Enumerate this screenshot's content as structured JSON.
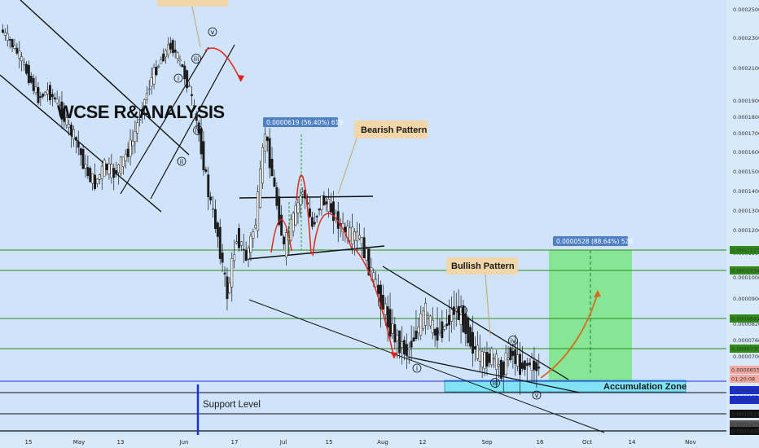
{
  "watermark": "WCSE R&ANALYSIS",
  "callouts": {
    "bearish": "Bearish Pattern",
    "bullish": "Bullish Pattern",
    "accumulation": "Accumulation Zone",
    "support": "Support Level"
  },
  "measures": {
    "top": "0.0000619 (56.40%) 619",
    "right": "0.0000528 (88.64%) 528"
  },
  "waves": {
    "i_up": "i",
    "ii_up": "ii",
    "iii_up": "iii",
    "iv_up": "iv",
    "v_up": "v",
    "i_low": "i",
    "ii_low": "ii",
    "iii_low": "iii",
    "iv_low": "iv",
    "v_low": "v"
  },
  "colors": {
    "background": "#cfe3fa",
    "candle": "#1b1b1b",
    "green_line": "#2e8b1a",
    "zone_fill": "#7fe3f5",
    "target_fill": "#7ee58a",
    "measure_box": "#4f7fc4",
    "callout_box": "#f0d6a8",
    "bearish_arc": "#e0241a",
    "support_bar": "#1a2fd8"
  },
  "chart_data": {
    "type": "candlestick",
    "x_ticks": [
      "15",
      "May",
      "13",
      "Jun",
      "17",
      "Jul",
      "15",
      "Aug",
      "12",
      "Sep",
      "16",
      "Oct",
      "14",
      "Nov"
    ],
    "y_ticks": [
      0.00025,
      0.00023,
      0.00021,
      0.00019,
      0.00018,
      0.00017,
      0.00016,
      0.00015,
      0.00014,
      0.00013,
      0.00012,
      0.00011,
      0.0001,
      9e-05,
      8.2e-05,
      7.6e-05,
      7e-05,
      6.5e-05,
      6e-05,
      5.5e-05,
      4.8e-05
    ],
    "y_tick_labels": [
      "0.0002500",
      "0.0002300",
      "0.0002100",
      "0.0001900",
      "0.0001800",
      "0.0001700",
      "0.0001600",
      "0.0001500",
      "0.0001400",
      "0.0001300",
      "0.0001200",
      "0.0001100",
      "0.0001000",
      "0.0000900",
      "0.0000820",
      "0.0000760",
      "0.0000700",
      "0.0000650",
      "0.0000600",
      "0.0000550",
      "0.0000480"
    ],
    "price_tags": [
      {
        "label": "0.0001121",
        "color": "#2e8b1a"
      },
      {
        "label": "0.0001034",
        "color": "#2e8b1a"
      },
      {
        "label": "0.0000844",
        "color": "#2e8b1a"
      },
      {
        "label": "0.0000730",
        "color": "#2e8b1a"
      },
      {
        "label": "0.0000655",
        "color": "#f4a9a0"
      },
      {
        "label": "01:20:08",
        "color": "#f4a9a0"
      },
      {
        "label": "0.0000618",
        "color": "#1a2fd8"
      },
      {
        "label": "0.0000581",
        "color": "#1a2fd8"
      },
      {
        "label": "0.0000515",
        "color": "#111111"
      },
      {
        "label": "0.0000475",
        "color": "#555555"
      },
      {
        "label": "0.0000458",
        "color": "#111111"
      }
    ],
    "horizontal_levels": [
      0.0001121,
      0.0001034,
      8.44e-05,
      7.3e-05,
      6.18e-05,
      5.81e-05,
      5.15e-05,
      4.58e-05
    ],
    "price_path": [
      [
        0,
        0.000236
      ],
      [
        8,
        0.000228
      ],
      [
        16,
        0.000218
      ],
      [
        24,
        0.000205
      ],
      [
        32,
        0.000192
      ],
      [
        40,
        0.000196
      ],
      [
        48,
        0.000189
      ],
      [
        56,
        0.000176
      ],
      [
        64,
        0.000166
      ],
      [
        72,
        0.000151
      ],
      [
        80,
        0.000144
      ],
      [
        88,
        0.000153
      ],
      [
        96,
        0.000149
      ],
      [
        104,
        0.000156
      ],
      [
        112,
        0.000166
      ],
      [
        120,
        0.000186
      ],
      [
        128,
        0.000204
      ],
      [
        136,
        0.000216
      ],
      [
        144,
        0.000226
      ],
      [
        152,
        0.000214
      ],
      [
        160,
        0.000197
      ],
      [
        168,
        0.00017
      ],
      [
        176,
        0.000139
      ],
      [
        184,
        0.000118
      ],
      [
        192,
        9.2e-05
      ],
      [
        200,
        0.000118
      ],
      [
        208,
        0.000108
      ],
      [
        216,
        0.000124
      ],
      [
        224,
        0.000171
      ],
      [
        232,
        0.000141
      ],
      [
        240,
        0.000112
      ],
      [
        248,
        0.000126
      ],
      [
        256,
        0.000141
      ],
      [
        264,
        0.000122
      ],
      [
        272,
        0.000136
      ],
      [
        280,
        0.000131
      ],
      [
        288,
        0.000122
      ],
      [
        296,
        0.000118
      ],
      [
        304,
        0.000117
      ],
      [
        312,
        0.000105
      ],
      [
        320,
        9.3e-05
      ],
      [
        328,
        8.3e-05
      ],
      [
        336,
        7.6e-05
      ],
      [
        344,
        7.2e-05
      ],
      [
        352,
        7.9e-05
      ],
      [
        360,
        8.6e-05
      ],
      [
        368,
        7.8e-05
      ],
      [
        376,
        8.1e-05
      ],
      [
        384,
        8.7e-05
      ],
      [
        392,
        8.3e-05
      ],
      [
        400,
        7.4e-05
      ],
      [
        408,
        6.8e-05
      ],
      [
        416,
        7e-05
      ],
      [
        424,
        6.4e-05
      ],
      [
        432,
        7.2e-05
      ],
      [
        440,
        6.6e-05
      ],
      [
        448,
        6.7e-05
      ],
      [
        456,
        6.5e-05
      ]
    ]
  }
}
